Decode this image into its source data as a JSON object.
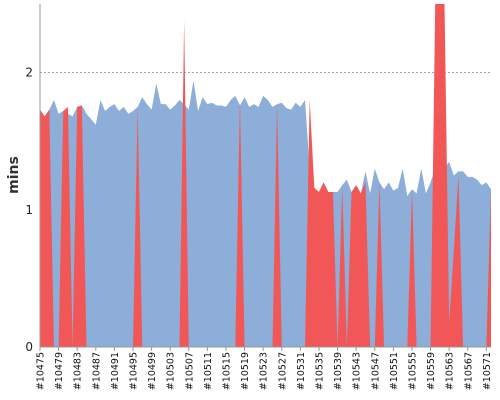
{
  "chart_data": {
    "type": "area",
    "ylabel": "mins",
    "xlabel": "",
    "title": "",
    "ylim": [
      0,
      2.5
    ],
    "yticks": [
      0,
      1,
      2
    ],
    "grid": {
      "horizontal": true,
      "style": "dotted"
    },
    "x": [
      "#10475",
      "#10476",
      "#10477",
      "#10478",
      "#10479",
      "#10480",
      "#10481",
      "#10482",
      "#10483",
      "#10484",
      "#10485",
      "#10486",
      "#10487",
      "#10488",
      "#10489",
      "#10490",
      "#10491",
      "#10492",
      "#10493",
      "#10494",
      "#10495",
      "#10496",
      "#10497",
      "#10498",
      "#10499",
      "#10500",
      "#10501",
      "#10502",
      "#10503",
      "#10504",
      "#10505",
      "#10506",
      "#10507",
      "#10508",
      "#10509",
      "#10510",
      "#10511",
      "#10512",
      "#10513",
      "#10514",
      "#10515",
      "#10516",
      "#10517",
      "#10518",
      "#10519",
      "#10520",
      "#10521",
      "#10522",
      "#10523",
      "#10524",
      "#10525",
      "#10526",
      "#10527",
      "#10528",
      "#10529",
      "#10530",
      "#10531",
      "#10532",
      "#10533",
      "#10534",
      "#10535",
      "#10536",
      "#10537",
      "#10538",
      "#10539",
      "#10540",
      "#10541",
      "#10542",
      "#10543",
      "#10544",
      "#10545",
      "#10546",
      "#10547",
      "#10548",
      "#10549",
      "#10550",
      "#10551",
      "#10552",
      "#10553",
      "#10554",
      "#10555",
      "#10556",
      "#10557",
      "#10558",
      "#10559",
      "#10560",
      "#10561",
      "#10562",
      "#10563",
      "#10564",
      "#10565",
      "#10566",
      "#10567",
      "#10568",
      "#10569",
      "#10570",
      "#10571",
      "#10572"
    ],
    "xtick_labels": [
      "#10475",
      "#10479",
      "#10483",
      "#10487",
      "#10491",
      "#10495",
      "#10499",
      "#10503",
      "#10507",
      "#10511",
      "#10515",
      "#10519",
      "#10523",
      "#10527",
      "#10531",
      "#10535",
      "#10539",
      "#10543",
      "#10547",
      "#10551",
      "#10555",
      "#10559",
      "#10563",
      "#10567",
      "#10571"
    ],
    "series": [
      {
        "color": "#8caed8",
        "values": [
          1.73,
          1.68,
          1.73,
          1.8,
          1.7,
          1.72,
          1.7,
          1.68,
          1.75,
          1.76,
          1.7,
          1.66,
          1.62,
          1.8,
          1.72,
          1.75,
          1.77,
          1.72,
          1.75,
          1.7,
          1.72,
          1.75,
          1.82,
          1.77,
          1.73,
          1.92,
          1.77,
          1.77,
          1.73,
          1.76,
          1.8,
          1.77,
          1.73,
          1.94,
          1.72,
          1.82,
          1.77,
          1.78,
          1.76,
          1.76,
          1.75,
          1.8,
          1.83,
          1.76,
          1.82,
          1.75,
          1.77,
          1.75,
          1.83,
          1.8,
          1.75,
          1.77,
          1.78,
          1.74,
          1.73,
          1.78,
          1.75,
          1.8,
          1.3,
          1.16,
          1.13,
          1.2,
          1.13,
          1.13,
          1.13,
          1.18,
          1.22,
          1.13,
          1.18,
          1.12,
          1.28,
          1.12,
          1.3,
          1.2,
          1.15,
          1.2,
          1.14,
          1.16,
          1.3,
          1.1,
          1.15,
          1.12,
          1.3,
          1.12,
          1.2,
          1.3,
          1.1,
          1.3,
          1.35,
          1.25,
          1.28,
          1.28,
          1.24,
          1.24,
          1.22,
          1.18,
          1.2,
          1.15
        ]
      },
      {
        "color": "#f25757",
        "values": [
          1.73,
          1.68,
          1.73,
          0,
          0,
          1.72,
          1.75,
          0,
          1.75,
          1.76,
          0,
          0,
          0,
          0,
          0,
          0,
          0,
          0,
          0,
          0,
          0,
          1.75,
          0,
          0,
          0,
          0,
          0,
          0,
          0,
          0,
          0,
          2.38,
          0,
          0,
          0,
          0,
          0,
          0,
          0,
          0,
          0,
          0,
          0,
          1.8,
          0,
          0,
          0,
          0,
          0,
          0,
          0,
          1.77,
          0,
          0,
          0,
          0,
          0,
          0,
          1.8,
          1.16,
          1.13,
          1.2,
          1.13,
          1.13,
          0,
          1.18,
          0,
          1.13,
          1.18,
          1.12,
          1.2,
          0,
          0,
          1.2,
          0,
          0,
          0,
          0,
          0,
          0,
          1.15,
          0,
          0,
          0,
          0,
          2.55,
          2.55,
          2.55,
          0.18,
          0.7,
          1.25,
          0,
          0,
          0,
          0,
          0,
          0,
          1.15
        ]
      }
    ]
  }
}
